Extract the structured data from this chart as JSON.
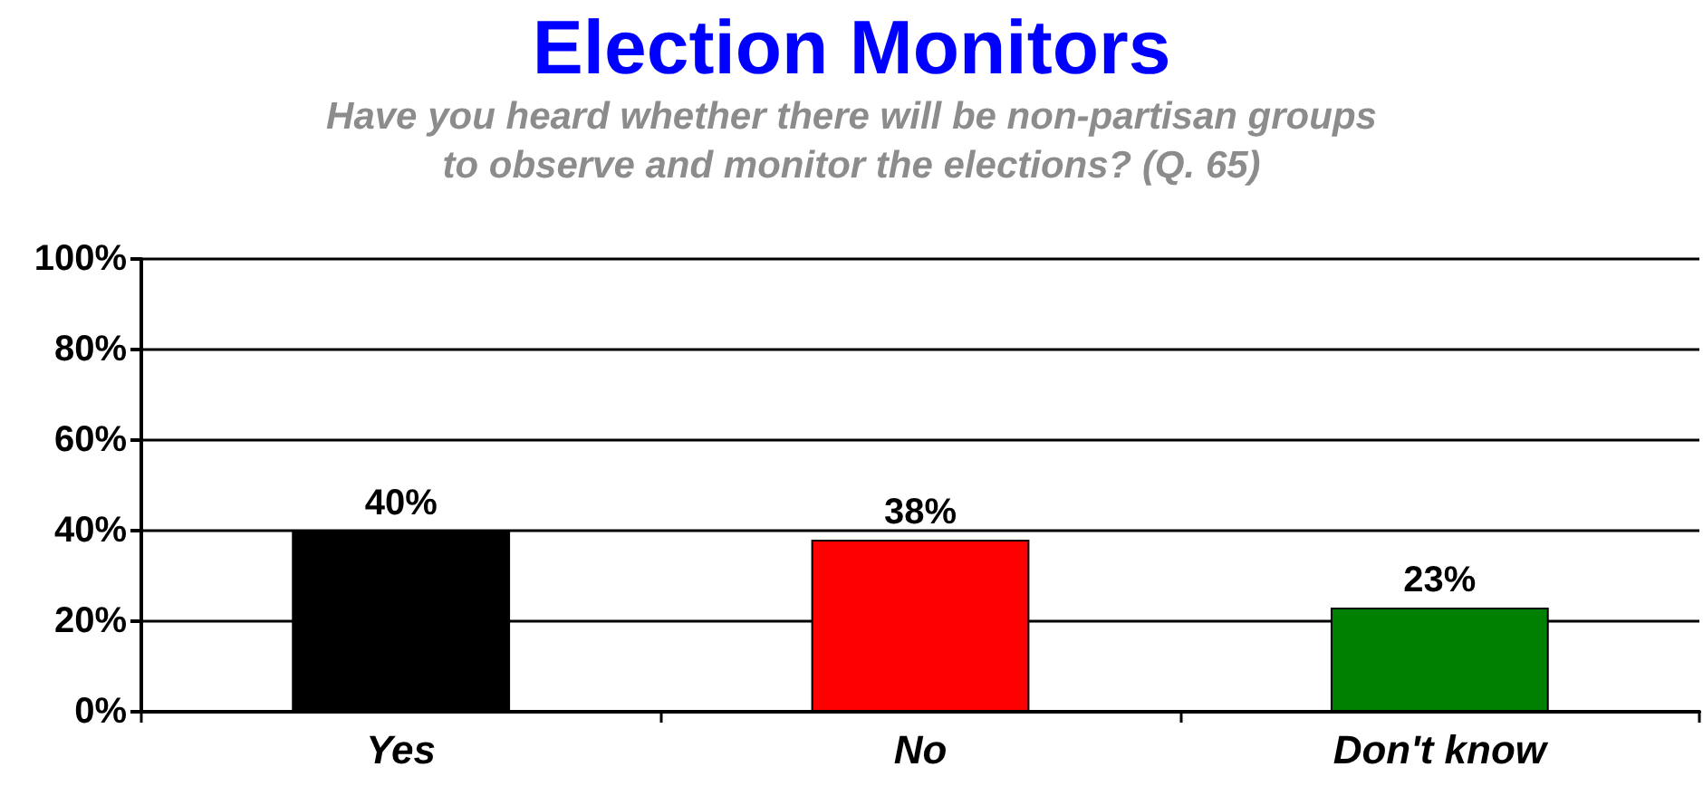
{
  "chart_data": {
    "type": "bar",
    "title": "Election Monitors",
    "subtitle": "Have you heard whether there will be non-partisan groups\nto observe and monitor the elections? (Q. 65)",
    "categories": [
      "Yes",
      "No",
      "Don't know"
    ],
    "values": [
      40,
      38,
      23
    ],
    "colors": [
      "#000000",
      "#ff0000",
      "#008000"
    ],
    "ylim": [
      0,
      100
    ],
    "yticks": [
      {
        "value": 0,
        "label": "0%"
      },
      {
        "value": 20,
        "label": "20%"
      },
      {
        "value": 40,
        "label": "40%"
      },
      {
        "value": 60,
        "label": "60%"
      },
      {
        "value": 80,
        "label": "80%"
      },
      {
        "value": 100,
        "label": "100%"
      }
    ],
    "value_labels": [
      "40%",
      "38%",
      "23%"
    ],
    "grid": "y"
  }
}
